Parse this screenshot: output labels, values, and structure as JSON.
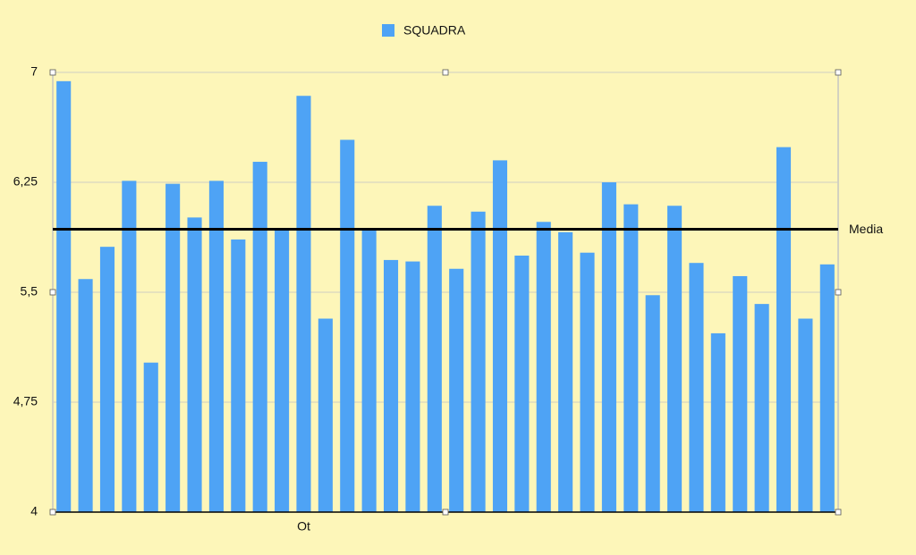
{
  "chart_data": {
    "type": "bar",
    "categories": [
      null,
      null,
      null,
      null,
      null,
      null,
      null,
      null,
      null,
      null,
      null,
      "Ot",
      null,
      null,
      null,
      null,
      null,
      null,
      null,
      null,
      null,
      null,
      null,
      null,
      null,
      null,
      null,
      null,
      null,
      null,
      null,
      null,
      null,
      null,
      null,
      null
    ],
    "series": [
      {
        "name": "SQUADRA",
        "color": "#4ea3f5",
        "values": [
          6.94,
          5.59,
          5.81,
          6.26,
          5.02,
          6.24,
          6.01,
          6.26,
          5.86,
          6.39,
          5.93,
          6.84,
          5.32,
          6.54,
          5.93,
          5.72,
          5.71,
          6.09,
          5.66,
          6.05,
          6.4,
          5.75,
          5.98,
          5.91,
          5.77,
          6.25,
          6.1,
          5.48,
          6.09,
          5.7,
          5.22,
          5.61,
          5.42,
          6.49,
          5.32,
          5.69
        ]
      }
    ],
    "ylim": [
      4,
      7
    ],
    "yticks": [
      4,
      {
        "value": 4.75,
        "label": "4,75"
      },
      {
        "value": 5.5,
        "label": "5,5"
      },
      {
        "value": 6.25,
        "label": "6,25"
      },
      7
    ],
    "grid": true,
    "legend": "top",
    "reference_line": {
      "label": "Media",
      "value": 5.93,
      "color": "#000000"
    }
  }
}
